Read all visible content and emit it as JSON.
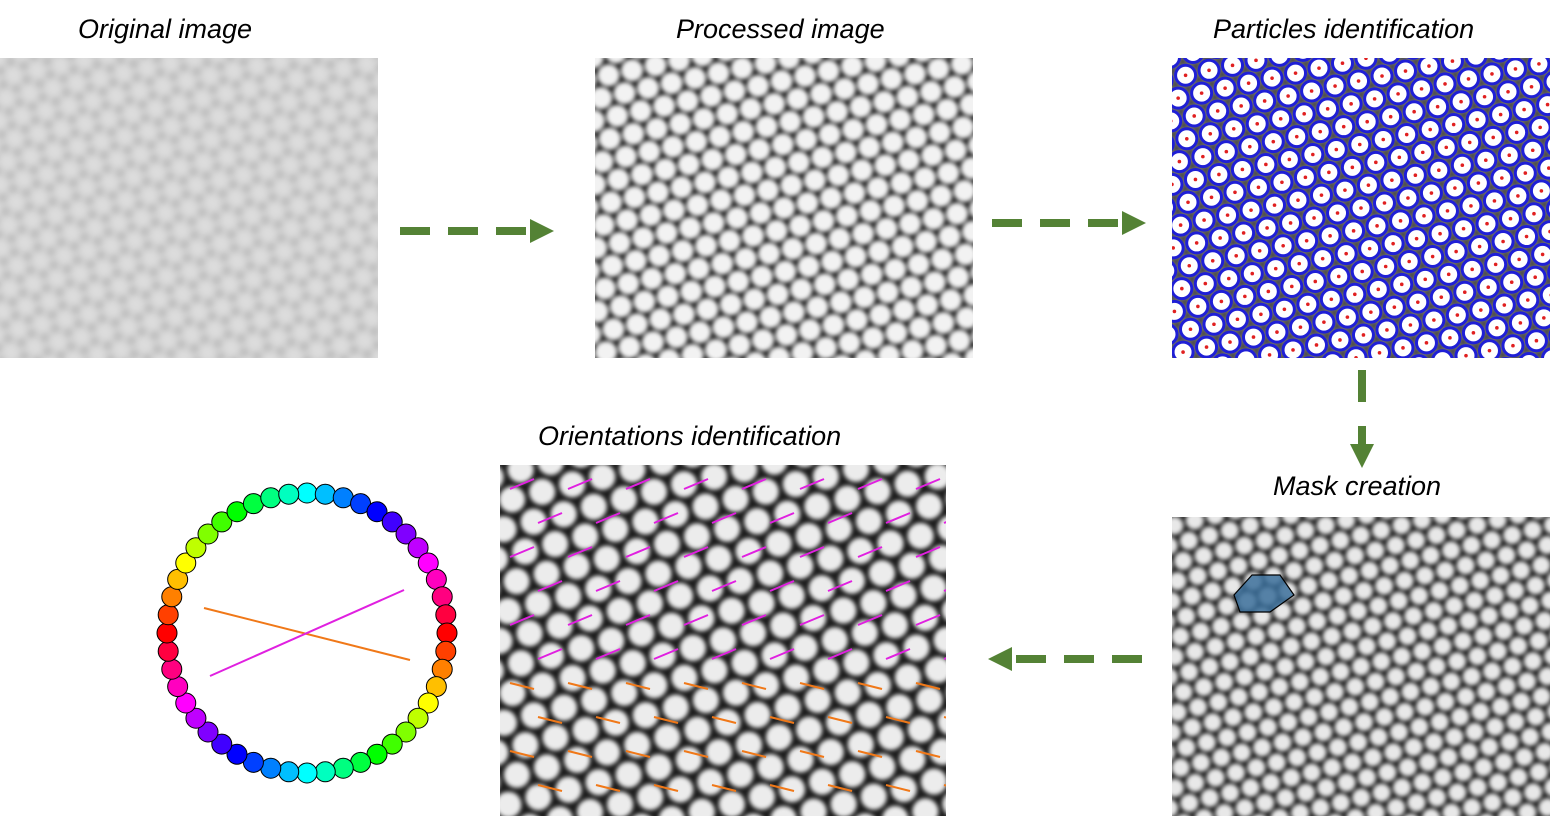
{
  "labels": {
    "original": "Original image",
    "processed": "Processed image",
    "particles": "Particles identification",
    "mask": "Mask creation",
    "orientations": "Orientations identification"
  },
  "colors": {
    "arrow": "#548235",
    "particle_ring": "#1f1fd6",
    "particle_center": "#e02020",
    "orientation_a": "#e020e0",
    "orientation_b": "#f07818",
    "mask_fill": "#3b6f9a"
  },
  "color_wheel": {
    "hues_deg": [
      180,
      195,
      210,
      225,
      240,
      255,
      270,
      285,
      300,
      315,
      330,
      345,
      0,
      15,
      30,
      45,
      60,
      75,
      90,
      105,
      120,
      135,
      150,
      165,
      180,
      195,
      210,
      225,
      240,
      255,
      270,
      285,
      300,
      315,
      330,
      345,
      0,
      15,
      30,
      45,
      60,
      75,
      90,
      105,
      120,
      135,
      150,
      165
    ]
  }
}
